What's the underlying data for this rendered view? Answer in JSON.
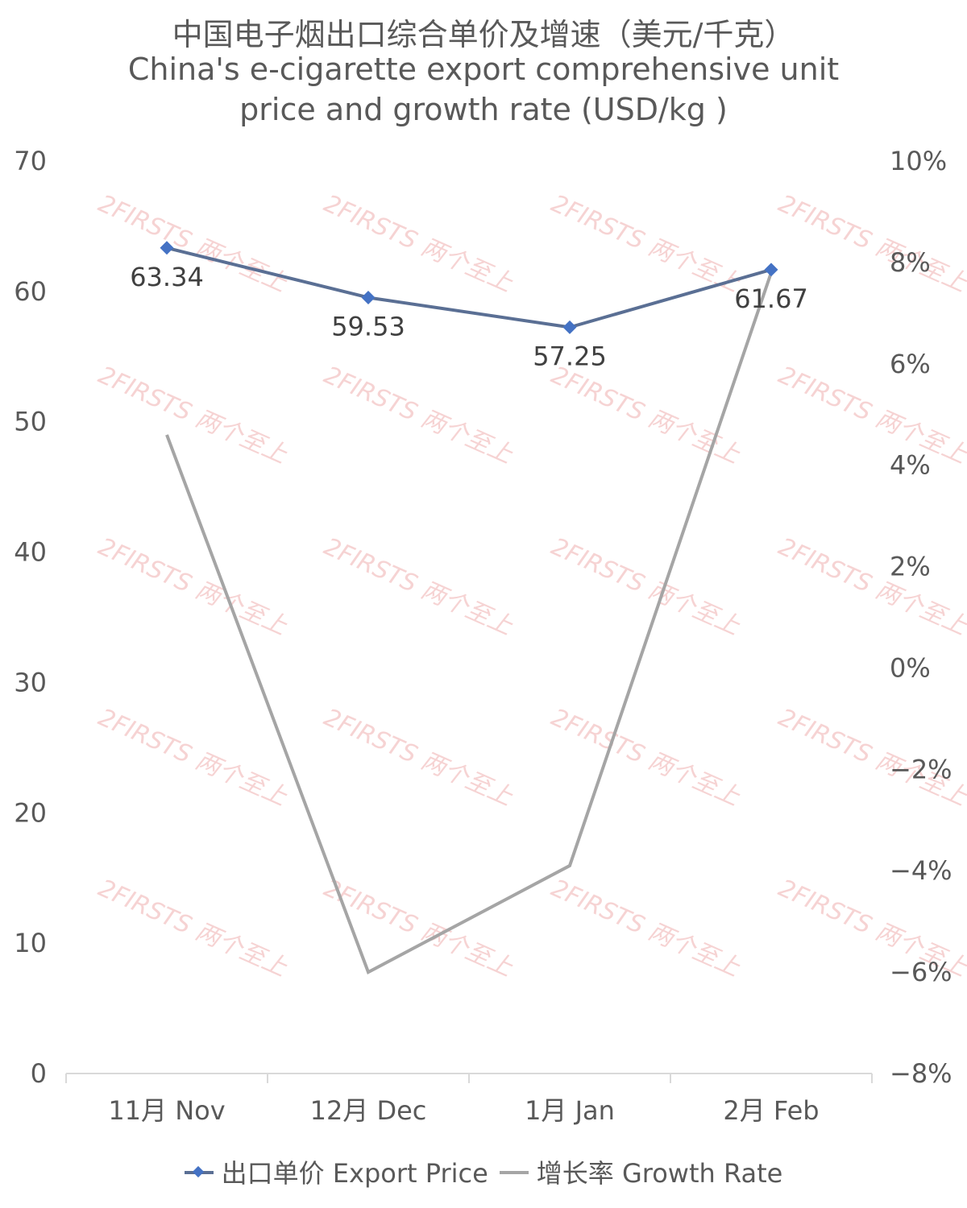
{
  "title_zh": "中国电子烟出口综合单价及增速（美元/千克）",
  "title_en_line1": "China's e-cigarette export comprehensive unit",
  "title_en_line2": "price and growth rate (USD/kg )",
  "watermark_text": "2FIRSTS 两个至上",
  "chart_data": {
    "type": "line",
    "categories": [
      "11月 Nov",
      "12月 Dec",
      "1月 Jan",
      "2月 Feb"
    ],
    "series": [
      {
        "name": "出口单价 Export Price",
        "axis": "left",
        "values": [
          63.34,
          59.53,
          57.25,
          61.67
        ],
        "data_labels": [
          "63.34",
          "59.53",
          "57.25",
          "61.67"
        ],
        "color": "#5a6f94",
        "marker_color": "#4472c4"
      },
      {
        "name": "增长率 Growth Rate",
        "axis": "right",
        "values": [
          4.6,
          -6.0,
          -3.9,
          7.8
        ],
        "color": "#a5a5a5"
      }
    ],
    "y_left": {
      "min": 0,
      "max": 70,
      "ticks": [
        0,
        10,
        20,
        30,
        40,
        50,
        60,
        70
      ]
    },
    "y_right": {
      "min": -8,
      "max": 10,
      "ticks": [
        -8,
        -6,
        -4,
        -2,
        0,
        2,
        4,
        6,
        8,
        10
      ],
      "tick_labels": [
        "−8%",
        "−6%",
        "−4%",
        "−2%",
        "0%",
        "2%",
        "4%",
        "6%",
        "8%",
        "10%"
      ]
    },
    "grid": false,
    "legend_position": "bottom"
  }
}
